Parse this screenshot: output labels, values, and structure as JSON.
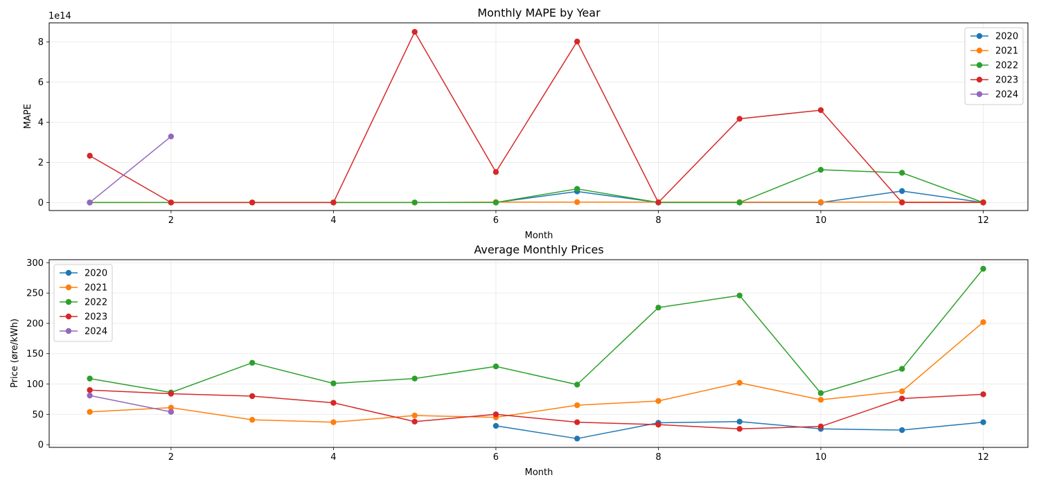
{
  "chart_data": [
    {
      "type": "line",
      "title": "Monthly MAPE by Year",
      "xlabel": "Month",
      "ylabel": "MAPE",
      "offset_text": "1e14",
      "x": [
        1,
        2,
        3,
        4,
        5,
        6,
        7,
        8,
        9,
        10,
        11,
        12
      ],
      "xlim": [
        0.5,
        12.55
      ],
      "ylim": [
        -0.4,
        8.95
      ],
      "yunit_multiplier": "1e14",
      "xticks": [
        2,
        4,
        6,
        8,
        10,
        12
      ],
      "yticks": [
        0,
        2,
        4,
        6,
        8
      ],
      "grid": true,
      "legend_position": "top-right",
      "series": [
        {
          "name": "2020",
          "color": "#1f77b4",
          "x": [
            6,
            7,
            8,
            9,
            10,
            11,
            12
          ],
          "values": [
            0,
            0.55,
            0,
            0,
            0,
            0.57,
            0
          ]
        },
        {
          "name": "2021",
          "color": "#ff7f0e",
          "x": [
            1,
            2,
            3,
            4,
            5,
            6,
            7,
            8,
            9,
            10,
            11,
            12
          ],
          "values": [
            0,
            0,
            0,
            0,
            0,
            0.02,
            0.02,
            0.02,
            0.02,
            0.02,
            0.02,
            0.02
          ]
        },
        {
          "name": "2022",
          "color": "#2ca02c",
          "x": [
            1,
            2,
            3,
            4,
            5,
            6,
            7,
            8,
            9,
            10,
            11,
            12
          ],
          "values": [
            0,
            0,
            0,
            0,
            0,
            0,
            0.68,
            0,
            0,
            1.63,
            1.48,
            0
          ]
        },
        {
          "name": "2023",
          "color": "#d62728",
          "x": [
            1,
            2,
            3,
            4,
            5,
            6,
            7,
            8,
            9,
            10,
            11,
            12
          ],
          "values": [
            2.33,
            0,
            0,
            0,
            8.5,
            1.52,
            8.02,
            0,
            4.17,
            4.6,
            0,
            0
          ]
        },
        {
          "name": "2024",
          "color": "#9467bd",
          "x": [
            1,
            2
          ],
          "values": [
            0,
            3.29
          ]
        }
      ]
    },
    {
      "type": "line",
      "title": "Average Monthly Prices",
      "xlabel": "Month",
      "ylabel": "Price (øre/kWh)",
      "x": [
        1,
        2,
        3,
        4,
        5,
        6,
        7,
        8,
        9,
        10,
        11,
        12
      ],
      "xlim": [
        0.5,
        12.55
      ],
      "ylim": [
        -4.5,
        305
      ],
      "xticks": [
        2,
        4,
        6,
        8,
        10,
        12
      ],
      "yticks": [
        0,
        50,
        100,
        150,
        200,
        250,
        300
      ],
      "grid": true,
      "legend_position": "top-left",
      "series": [
        {
          "name": "2020",
          "color": "#1f77b4",
          "x": [
            6,
            7,
            8,
            9,
            10,
            11,
            12
          ],
          "values": [
            31,
            10,
            36,
            38,
            26,
            24,
            37
          ]
        },
        {
          "name": "2021",
          "color": "#ff7f0e",
          "x": [
            1,
            2,
            3,
            4,
            5,
            6,
            7,
            8,
            9,
            10,
            11,
            12
          ],
          "values": [
            54,
            61,
            41,
            37,
            48,
            45,
            65,
            72,
            102,
            74,
            88,
            202
          ]
        },
        {
          "name": "2022",
          "color": "#2ca02c",
          "x": [
            1,
            2,
            3,
            4,
            5,
            6,
            7,
            8,
            9,
            10,
            11,
            12
          ],
          "values": [
            109,
            86,
            135,
            101,
            109,
            129,
            99,
            226,
            246,
            85,
            125,
            290
          ]
        },
        {
          "name": "2023",
          "color": "#d62728",
          "x": [
            1,
            2,
            3,
            4,
            5,
            6,
            7,
            8,
            9,
            10,
            11,
            12
          ],
          "values": [
            90,
            84,
            80,
            69,
            38,
            50,
            37,
            33,
            26,
            30,
            76,
            83
          ]
        },
        {
          "name": "2024",
          "color": "#9467bd",
          "x": [
            1,
            2
          ],
          "values": [
            81,
            54
          ]
        }
      ]
    }
  ]
}
